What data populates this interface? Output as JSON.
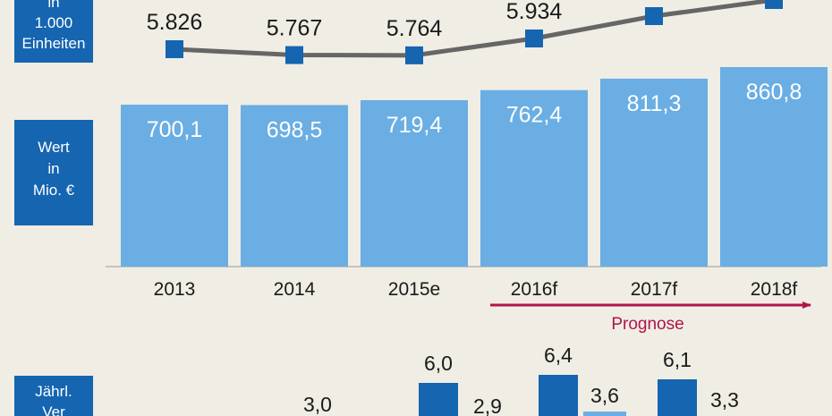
{
  "colors": {
    "background": "#f0ede4",
    "box": "#1565b0",
    "bar": "#6aaee3",
    "line": "#666666",
    "marker": "#1565b0",
    "prognosis": "#b0154a"
  },
  "labels": {
    "units_box": [
      "in",
      "1.000",
      "Einheiten"
    ],
    "value_box": [
      "Wert",
      "in",
      "Mio. €"
    ],
    "change_box": [
      "Jährl.",
      "Ver"
    ],
    "prognosis": "Prognose"
  },
  "chart_data": {
    "type": "bar",
    "categories": [
      "2013",
      "2014",
      "2015e",
      "2016f",
      "2017f",
      "2018f"
    ],
    "value_series": {
      "values": [
        700.1,
        698.5,
        719.4,
        762.4,
        811.3,
        860.8
      ],
      "value_labels": [
        "700,1",
        "698,5",
        "719,4",
        "762,4",
        "811,3",
        "860,8"
      ]
    },
    "units_series": {
      "values": [
        5826,
        5767,
        5764,
        5934,
        null,
        null
      ],
      "value_labels": [
        "5.826",
        "5.767",
        "5.764",
        "5.934",
        "",
        ""
      ]
    },
    "annual_change": {
      "visible_labels": [
        "3,0",
        "6,0",
        "2,9",
        "6,4",
        "3,6",
        "6,1",
        "3,3"
      ]
    }
  }
}
